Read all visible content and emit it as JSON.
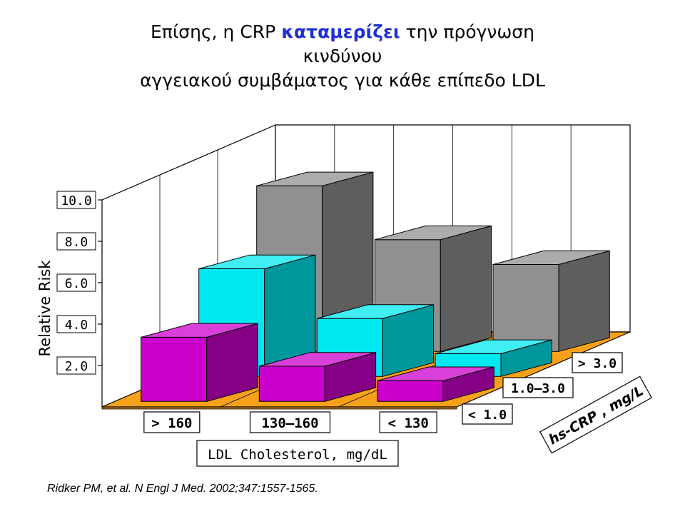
{
  "title": {
    "line1_pre": "Επίσης, η CRP ",
    "line1_highlight": "καταμερίζει",
    "line1_post": " την πρόγνωση",
    "line2": "κινδύνου",
    "line3": "αγγειακού συμβάματος για κάθε επίπεδο LDL"
  },
  "colors": {
    "highlight": "#1e2fd6",
    "floor": "#f7a11a",
    "series_low": "#cc00cc",
    "series_mid": "#00e8f0",
    "series_high": "#909090"
  },
  "chart_data": {
    "type": "bar",
    "subtype": "3d-grouped",
    "ylabel": "Relative Risk",
    "xlabel": "LDL Cholesterol, mg/dL",
    "depth_label": "hs-CRP , mg/L",
    "y_ticks": [
      "2.0",
      "4.0",
      "6.0",
      "8.0",
      "10.0"
    ],
    "ylim": [
      0,
      10
    ],
    "grid": true,
    "categories": [
      "> 160",
      "130–160",
      "< 130"
    ],
    "series": [
      {
        "name": "< 1.0",
        "values": [
          3.1,
          1.7,
          1.0
        ]
      },
      {
        "name": "1.0–3.0",
        "values": [
          5.2,
          2.8,
          1.1
        ]
      },
      {
        "name": "> 3.0",
        "values": [
          8.0,
          5.4,
          4.2
        ]
      }
    ]
  },
  "citation": "Ridker PM, et al. N Engl J Med. 2002;347:1557-1565."
}
